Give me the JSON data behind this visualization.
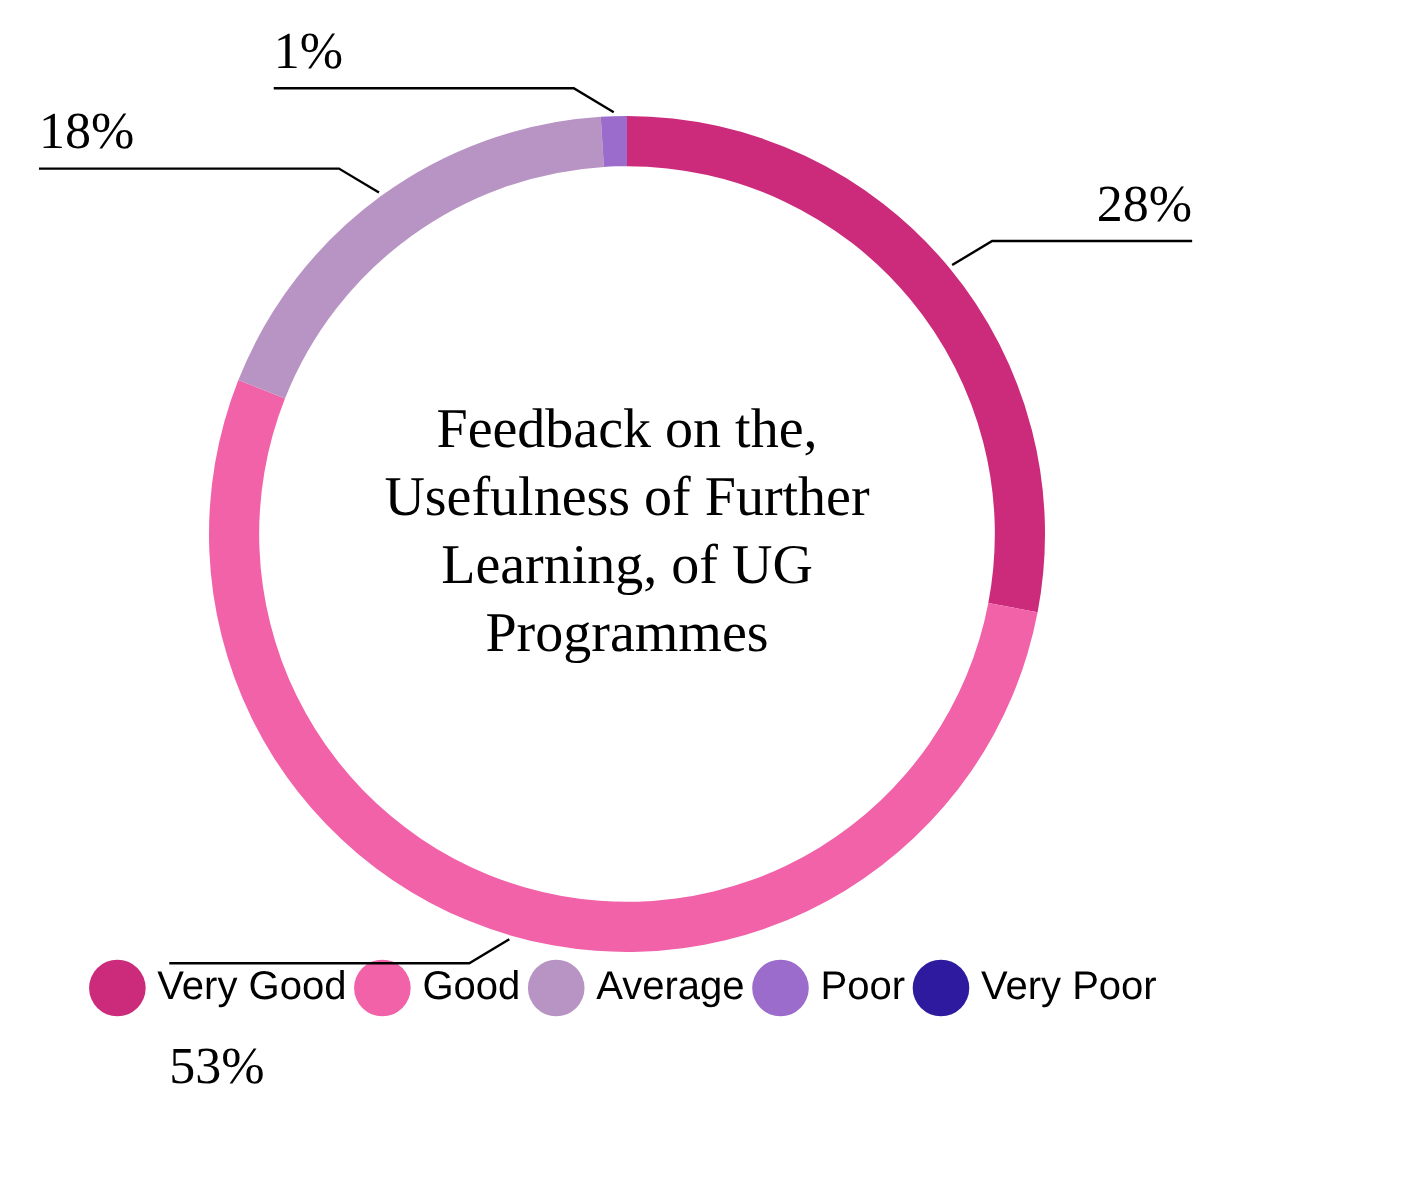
{
  "chart_data": {
    "type": "donut",
    "title": "Feedback on the, Usefulness of Further Learning, of UG Programmes",
    "categories": [
      "Very Good",
      "Good",
      "Average",
      "Poor",
      "Very Poor"
    ],
    "values": [
      28,
      53,
      18,
      1,
      0
    ],
    "colors": [
      "#cc2a7a",
      "#f162a9",
      "#b894c4",
      "#9b6ccb",
      "#2e1a9e"
    ],
    "value_labels": [
      "28%",
      "53%",
      "18%",
      "1%",
      null
    ],
    "legend": "bottom"
  }
}
